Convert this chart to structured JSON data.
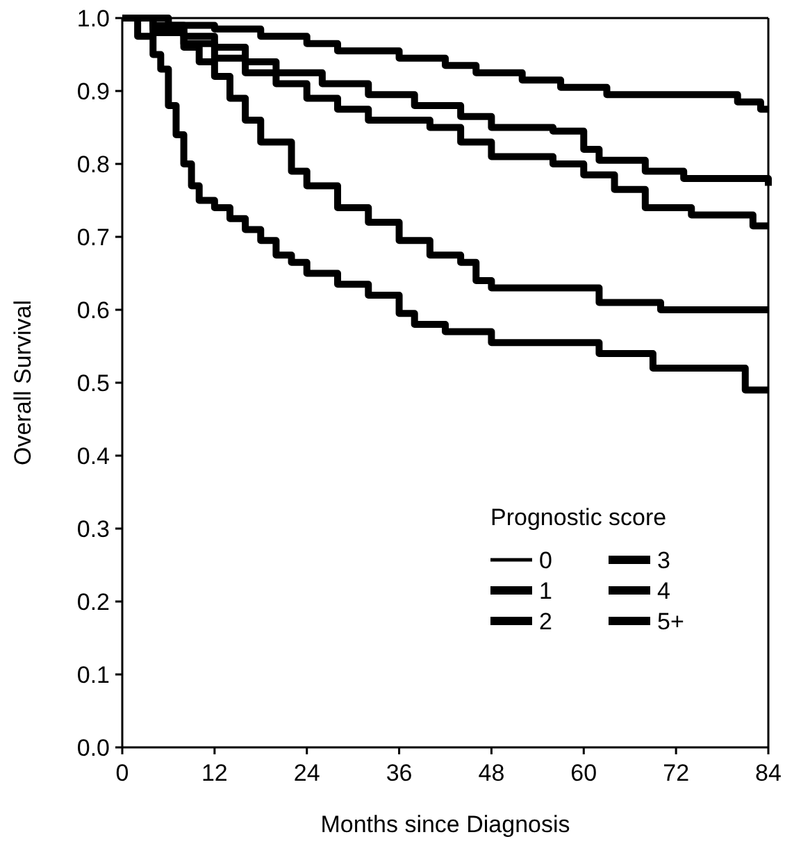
{
  "chart_data": {
    "type": "step",
    "xlabel": "Months since Diagnosis",
    "ylabel": "Overall Survival",
    "legend_title": "Prognostic score",
    "legend": "bottom right",
    "grid": false,
    "xlim": [
      0,
      84
    ],
    "xticks": [
      0,
      12,
      24,
      36,
      48,
      60,
      72,
      84
    ],
    "ylim": [
      0,
      1
    ],
    "yticks": [
      {
        "value": 0,
        "label": "0.0"
      },
      0.1,
      0.2,
      0.3,
      0.4,
      0.5,
      0.6,
      0.7,
      0.8,
      0.9,
      {
        "value": 1,
        "label": "1.0"
      }
    ],
    "series": [
      {
        "name": "0",
        "color": "#000000",
        "x": [
          0,
          84
        ],
        "values": [
          1,
          1
        ]
      },
      {
        "name": "1",
        "color": "#000000",
        "x": [
          0,
          6,
          12,
          18,
          24,
          28,
          36,
          42,
          46,
          52,
          57,
          63,
          76,
          80,
          83,
          84
        ],
        "values": [
          1,
          0.99,
          0.985,
          0.975,
          0.965,
          0.955,
          0.945,
          0.935,
          0.925,
          0.915,
          0.905,
          0.895,
          0.895,
          0.885,
          0.875,
          0.875
        ]
      },
      {
        "name": "2",
        "color": "#000000",
        "x": [
          0,
          4,
          8,
          12,
          16,
          20,
          26,
          32,
          38,
          44,
          48,
          56,
          60,
          62,
          68,
          73,
          82,
          84
        ],
        "values": [
          1,
          0.99,
          0.975,
          0.96,
          0.94,
          0.925,
          0.91,
          0.895,
          0.88,
          0.865,
          0.85,
          0.845,
          0.82,
          0.805,
          0.79,
          0.78,
          0.78,
          0.77
        ]
      },
      {
        "name": "3",
        "color": "#000000",
        "x": [
          0,
          4,
          8,
          12,
          16,
          20,
          24,
          28,
          32,
          40,
          44,
          48,
          56,
          60,
          64,
          68,
          74,
          82,
          84
        ],
        "values": [
          1,
          0.985,
          0.965,
          0.945,
          0.925,
          0.91,
          0.89,
          0.875,
          0.86,
          0.85,
          0.83,
          0.81,
          0.8,
          0.785,
          0.765,
          0.74,
          0.73,
          0.715,
          0.715
        ]
      },
      {
        "name": "4",
        "color": "#000000",
        "x": [
          0,
          4,
          8,
          10,
          12,
          14,
          16,
          18,
          22,
          24,
          28,
          32,
          36,
          40,
          44,
          46,
          48,
          60,
          62,
          69,
          70,
          84
        ],
        "values": [
          1,
          0.98,
          0.96,
          0.94,
          0.92,
          0.89,
          0.86,
          0.83,
          0.79,
          0.77,
          0.74,
          0.72,
          0.695,
          0.675,
          0.665,
          0.64,
          0.63,
          0.63,
          0.61,
          0.61,
          0.6,
          0.6
        ]
      },
      {
        "name": "5+",
        "color": "#000000",
        "x": [
          0,
          2,
          4,
          5,
          6,
          7,
          8,
          9,
          10,
          12,
          14,
          16,
          18,
          20,
          22,
          24,
          28,
          32,
          36,
          38,
          42,
          48,
          62,
          69,
          81,
          84
        ],
        "values": [
          1,
          0.975,
          0.95,
          0.93,
          0.88,
          0.84,
          0.8,
          0.77,
          0.75,
          0.74,
          0.725,
          0.71,
          0.695,
          0.675,
          0.665,
          0.65,
          0.635,
          0.62,
          0.595,
          0.58,
          0.57,
          0.555,
          0.54,
          0.52,
          0.49,
          0.49
        ]
      }
    ]
  }
}
